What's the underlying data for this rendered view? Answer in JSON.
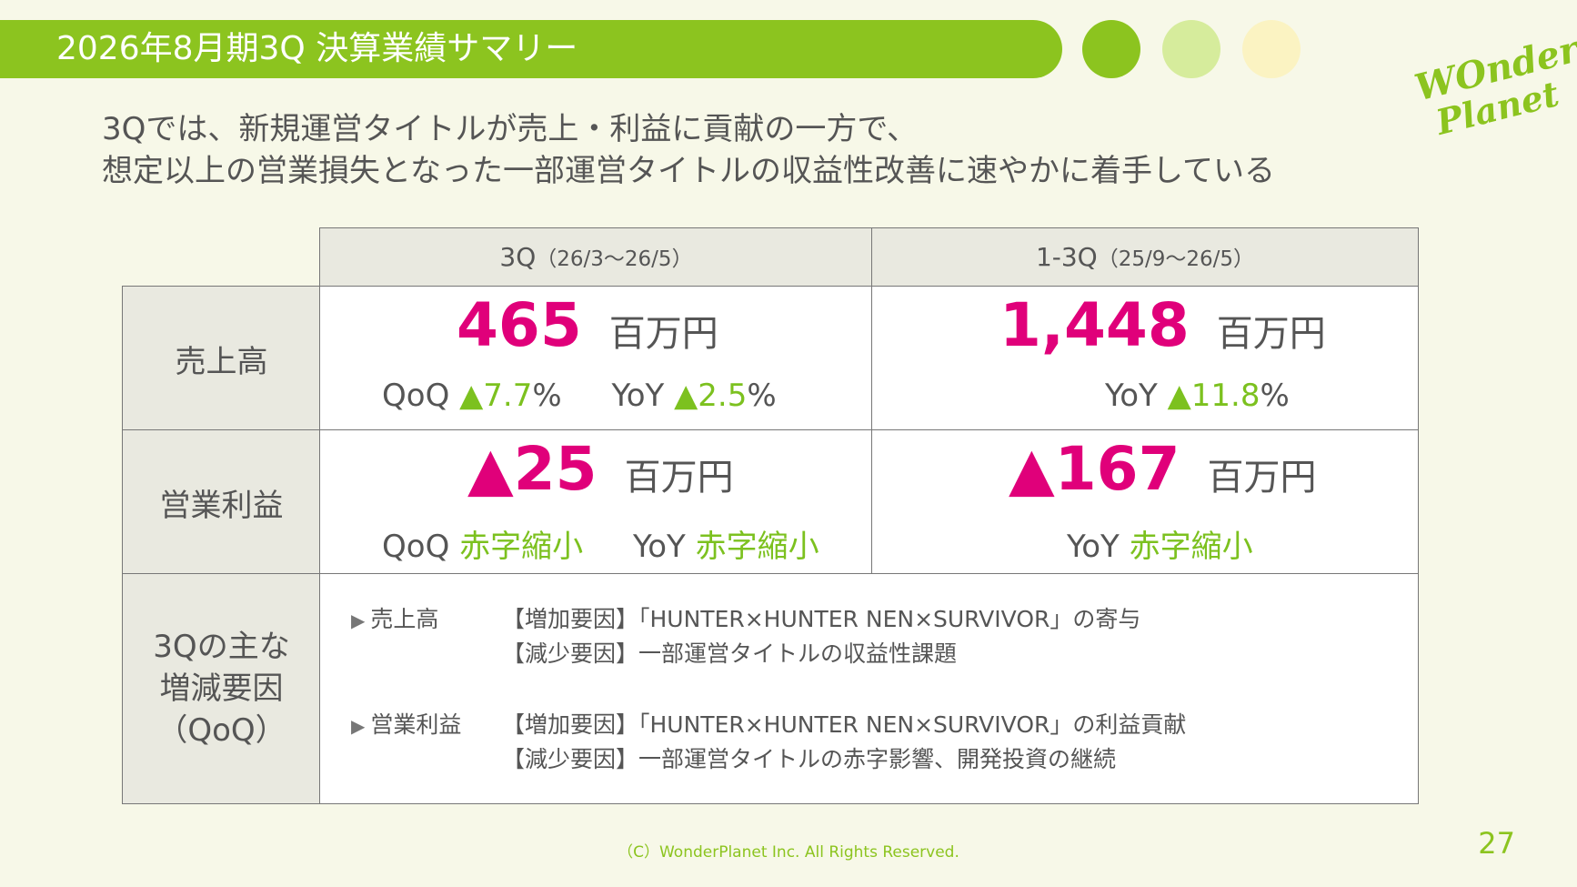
{
  "header": {
    "title": "2026年8月期3Q 決算業績サマリー",
    "logo_line1": "WOnder",
    "logo_line2": "Planet"
  },
  "lead": {
    "line1": "3Qでは、新規運営タイトルが売上・利益に貢献の一方で、",
    "line2": "想定以上の営業損失となった一部運営タイトルの収益性改善に速やかに着手している"
  },
  "table": {
    "col_3q_main": "3Q",
    "col_3q_period": "（26/3〜26/5）",
    "col_ytd_main": "1-3Q",
    "col_ytd_period": "（25/9〜26/5）",
    "rows": {
      "sales": {
        "label": "売上高",
        "q3_value": "465",
        "q3_unit": "百万円",
        "q3_qoq_label": "QoQ",
        "q3_qoq_value": "▲7.7",
        "q3_qoq_pct": "%",
        "q3_yoy_label": "YoY",
        "q3_yoy_value": "▲2.5",
        "q3_yoy_pct": "%",
        "ytd_value": "1,448",
        "ytd_unit": "百万円",
        "ytd_yoy_label": "YoY",
        "ytd_yoy_value": "▲11.8",
        "ytd_yoy_pct": "%"
      },
      "op": {
        "label": "営業利益",
        "q3_value": "▲25",
        "q3_unit": "百万円",
        "q3_qoq_label": "QoQ",
        "q3_qoq_value": "赤字縮小",
        "q3_yoy_label": "YoY",
        "q3_yoy_value": "赤字縮小",
        "ytd_value": "▲167",
        "ytd_unit": "百万円",
        "ytd_yoy_label": "YoY",
        "ytd_yoy_value": "赤字縮小"
      },
      "factors": {
        "label1": "3Qの主な",
        "label2": "増減要因",
        "label3": "（QoQ）",
        "sales_label": "売上高",
        "sales_inc": "【増加要因】「HUNTER×HUNTER NEN×SURVIVOR」の寄与",
        "sales_dec": "【減少要因】一部運営タイトルの収益性課題",
        "op_label": "営業利益",
        "op_inc": "【増加要因】「HUNTER×HUNTER NEN×SURVIVOR」の利益貢献",
        "op_dec": "【減少要因】一部運営タイトルの赤字影響、開発投資の継続"
      }
    }
  },
  "footer": {
    "copyright": "（C）WonderPlanet Inc.  All Rights Reserved.",
    "page_number": "27"
  },
  "colors": {
    "accent_green": "#8cc41f",
    "highlight_magenta": "#e0007a",
    "positive_green": "#7cc11f"
  },
  "icons": [
    "triangle-right-icon"
  ]
}
